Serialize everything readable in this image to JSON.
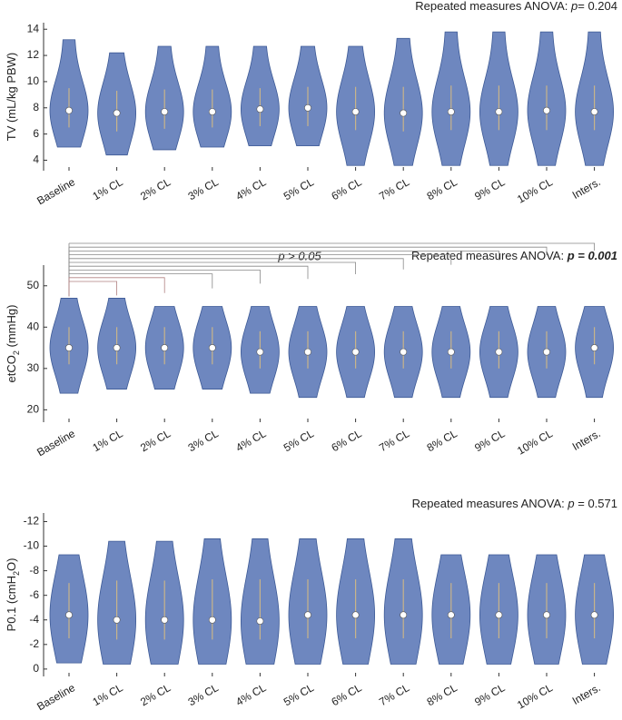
{
  "chart_data": [
    {
      "type": "violin",
      "color": "#5572b4",
      "title_parts": {
        "prefix": "Repeated measures ANOVA: ",
        "p": "p",
        "rest": "= 0.204"
      },
      "ylabel_parts": [
        "TV (mL/kg PBW)"
      ],
      "categories": [
        "Baseline",
        "1% CL",
        "2% CL",
        "3% CL",
        "4% CL",
        "5% CL",
        "6% CL",
        "7% CL",
        "8% CL",
        "9% CL",
        "10% CL",
        "Inters."
      ],
      "medians": [
        7.8,
        7.6,
        7.7,
        7.7,
        7.9,
        8.0,
        7.7,
        7.6,
        7.7,
        7.7,
        7.8,
        7.7
      ],
      "q1": [
        6.5,
        6.2,
        6.4,
        6.5,
        6.6,
        6.6,
        6.3,
        6.2,
        6.3,
        6.3,
        6.3,
        6.3
      ],
      "q3": [
        9.5,
        9.3,
        9.4,
        9.4,
        9.5,
        9.6,
        9.6,
        9.6,
        9.7,
        9.7,
        9.7,
        9.7
      ],
      "mins": [
        5.0,
        4.4,
        4.8,
        5.0,
        5.1,
        5.1,
        3.6,
        3.6,
        3.6,
        3.6,
        3.6,
        3.6
      ],
      "maxs": [
        13.2,
        12.2,
        12.7,
        12.7,
        12.7,
        12.7,
        12.7,
        13.3,
        13.8,
        13.8,
        13.8,
        13.8
      ],
      "ylim": [
        3.2,
        14.5
      ],
      "yticks": [
        4,
        6,
        8,
        10,
        12,
        14
      ]
    },
    {
      "type": "violin",
      "color": "#5572b4",
      "title_parts": {
        "prefix": "Repeated measures ANOVA: ",
        "bold": "p = 0.001"
      },
      "annotation": "p > 0.05",
      "ylabel_parts": [
        "etCO",
        "2",
        " (mmHg)"
      ],
      "categories": [
        "Baseline",
        "1% CL",
        "2% CL",
        "3% CL",
        "4% CL",
        "5% CL",
        "6% CL",
        "7% CL",
        "8% CL",
        "9% CL",
        "10% CL",
        "Inters."
      ],
      "medians": [
        35,
        35,
        35,
        35,
        34,
        34,
        34,
        34,
        34,
        34,
        34,
        35
      ],
      "q1": [
        31,
        31,
        31,
        31,
        30,
        30,
        30,
        30,
        30,
        30,
        30,
        31
      ],
      "q3": [
        40,
        40,
        40,
        40,
        39,
        39,
        39,
        39,
        39,
        39,
        39,
        40
      ],
      "mins": [
        24,
        25,
        25,
        25,
        24,
        23,
        23,
        23,
        23,
        23,
        23,
        23
      ],
      "maxs": [
        47,
        47,
        45,
        45,
        45,
        45,
        45,
        45,
        45,
        45,
        45,
        45
      ],
      "ylim": [
        17,
        55
      ],
      "yticks": [
        20,
        30,
        40,
        50
      ]
    },
    {
      "type": "violin",
      "color": "#5572b4",
      "title_parts": {
        "prefix": "Repeated measures ANOVA: ",
        "p": "p",
        "rest": " = 0.571"
      },
      "ylabel_parts": [
        "P0.1 (cmH",
        "2",
        "O)"
      ],
      "categories": [
        "Baseline",
        "1% CL",
        "2% CL",
        "3% CL",
        "4% CL",
        "5% CL",
        "6% CL",
        "7% CL",
        "8% CL",
        "9% CL",
        "10% CL",
        "Inters."
      ],
      "medians": [
        -4.4,
        -4.0,
        -4.0,
        -4.0,
        -3.9,
        -4.4,
        -4.4,
        -4.4,
        -4.4,
        -4.4,
        -4.4,
        -4.4
      ],
      "q1": [
        -2.5,
        -2.4,
        -2.4,
        -2.4,
        -2.4,
        -2.5,
        -2.5,
        -2.5,
        -2.5,
        -2.5,
        -2.5,
        -2.5
      ],
      "q3": [
        -7.0,
        -7.2,
        -7.2,
        -7.3,
        -7.3,
        -7.3,
        -7.3,
        -7.3,
        -7.0,
        -7.0,
        -7.0,
        -7.0
      ],
      "mins": [
        -0.5,
        -0.4,
        -0.4,
        -0.4,
        -0.4,
        -0.4,
        -0.4,
        -0.4,
        -0.4,
        -0.4,
        -0.4,
        -0.4
      ],
      "maxs": [
        -9.3,
        -10.4,
        -10.4,
        -10.6,
        -10.6,
        -10.6,
        -10.6,
        -10.6,
        -9.3,
        -9.3,
        -9.3,
        -9.3
      ],
      "ylim": [
        0.6,
        -12.7
      ],
      "yticks": [
        -12,
        -10,
        -8,
        -6,
        -4,
        -2,
        0
      ]
    }
  ]
}
